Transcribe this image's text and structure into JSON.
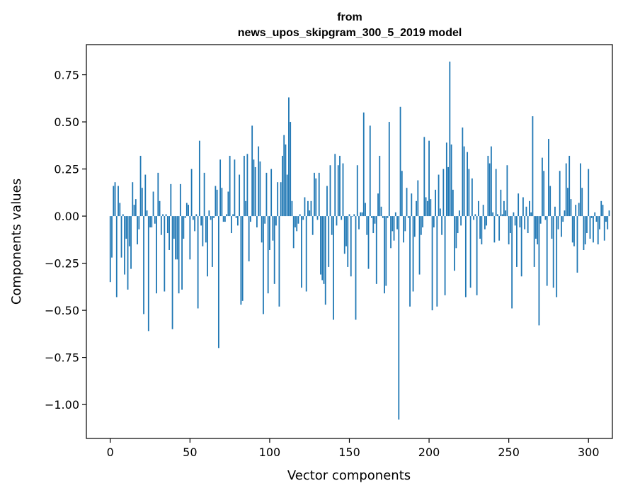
{
  "chart_data": {
    "type": "bar",
    "title_lines": [
      "from",
      "news_upos_skipgram_300_5_2019 model"
    ],
    "xlabel": "Vector components",
    "ylabel": "Components values",
    "xlim": [
      -15,
      315
    ],
    "ylim": [
      -1.18,
      0.91
    ],
    "xticks": [
      0,
      50,
      100,
      150,
      200,
      250,
      300
    ],
    "yticks": [
      0.75,
      0.5,
      0.25,
      0.0,
      -0.25,
      -0.5,
      -0.75,
      -1.0
    ],
    "ytick_labels": [
      "0.75",
      "0.50",
      "0.25",
      "0.00",
      "−0.25",
      "−0.50",
      "−0.75",
      "−1.00"
    ],
    "bar_color": "#1f77b4",
    "grid": false,
    "values": [
      -0.35,
      -0.22,
      0.16,
      0.18,
      -0.43,
      0.16,
      0.07,
      -0.22,
      0.01,
      -0.31,
      -0.12,
      -0.39,
      -0.16,
      -0.28,
      0.18,
      0.06,
      0.09,
      -0.15,
      -0.07,
      0.32,
      0.15,
      -0.52,
      0.22,
      0.03,
      -0.61,
      -0.06,
      -0.06,
      0.13,
      -0.04,
      -0.41,
      0.23,
      0.08,
      -0.1,
      0.01,
      -0.4,
      0.01,
      -0.09,
      -0.18,
      0.17,
      -0.6,
      -0.12,
      -0.23,
      -0.23,
      -0.41,
      0.17,
      -0.39,
      -0.12,
      -0.01,
      0.07,
      0.06,
      -0.23,
      0.25,
      -0.02,
      -0.08,
      0.01,
      -0.49,
      0.4,
      -0.05,
      -0.16,
      0.23,
      -0.14,
      -0.32,
      0.03,
      -0.02,
      -0.27,
      -0.01,
      0.16,
      0.14,
      -0.7,
      0.3,
      0.15,
      -0.03,
      -0.03,
      0.01,
      0.13,
      0.32,
      -0.09,
      0.01,
      0.3,
      -0.01,
      -0.05,
      0.22,
      -0.47,
      -0.45,
      0.32,
      0.08,
      0.33,
      -0.24,
      -0.03,
      0.48,
      0.3,
      0.26,
      -0.06,
      0.37,
      0.29,
      -0.14,
      -0.52,
      -0.04,
      0.23,
      -0.41,
      -0.18,
      0.25,
      -0.13,
      -0.36,
      -0.05,
      0.18,
      -0.48,
      0.18,
      0.32,
      0.43,
      0.38,
      0.22,
      0.63,
      0.5,
      0.08,
      -0.17,
      -0.06,
      -0.08,
      -0.04,
      0.01,
      -0.38,
      -0.02,
      0.1,
      -0.4,
      0.08,
      0.03,
      0.08,
      -0.1,
      0.23,
      0.2,
      -0.02,
      0.23,
      -0.31,
      -0.34,
      -0.36,
      -0.47,
      0.16,
      -0.27,
      0.27,
      -0.1,
      -0.55,
      0.33,
      -0.05,
      0.27,
      0.32,
      -0.02,
      0.28,
      -0.2,
      -0.16,
      -0.27,
      0.01,
      -0.32,
      0.0,
      0.01,
      -0.55,
      0.27,
      -0.07,
      0.02,
      0.02,
      0.55,
      0.07,
      -0.1,
      -0.28,
      0.48,
      -0.01,
      -0.09,
      -0.04,
      -0.36,
      0.12,
      0.32,
      0.05,
      -0.01,
      -0.41,
      -0.37,
      -0.01,
      0.5,
      -0.17,
      -0.08,
      -0.13,
      0.02,
      -0.07,
      -1.08,
      0.58,
      0.24,
      -0.14,
      -0.08,
      0.15,
      -0.01,
      -0.48,
      0.12,
      -0.4,
      -0.11,
      0.08,
      0.19,
      -0.31,
      -0.1,
      -0.06,
      0.42,
      0.1,
      0.08,
      0.4,
      0.09,
      -0.5,
      -0.06,
      0.14,
      -0.48,
      0.22,
      0.04,
      -0.1,
      0.25,
      -0.42,
      0.39,
      0.26,
      0.82,
      0.38,
      0.14,
      -0.29,
      -0.17,
      -0.09,
      0.03,
      -0.05,
      0.47,
      0.37,
      -0.43,
      0.34,
      0.25,
      -0.38,
      0.2,
      -0.02,
      0.01,
      -0.42,
      0.08,
      -0.12,
      -0.15,
      0.06,
      -0.07,
      -0.05,
      0.32,
      0.28,
      0.37,
      0.02,
      -0.14,
      0.25,
      0.01,
      -0.13,
      0.14,
      0.01,
      0.08,
      0.03,
      0.27,
      -0.15,
      -0.09,
      -0.49,
      0.02,
      -0.05,
      -0.27,
      0.12,
      -0.06,
      -0.32,
      0.1,
      -0.07,
      0.05,
      -0.09,
      0.08,
      0.02,
      0.53,
      -0.27,
      -0.12,
      -0.15,
      -0.58,
      -0.04,
      0.31,
      0.24,
      -0.02,
      -0.37,
      0.41,
      0.16,
      -0.12,
      -0.38,
      0.05,
      -0.43,
      -0.07,
      0.24,
      -0.11,
      -0.03,
      0.03,
      0.28,
      0.15,
      0.32,
      0.09,
      -0.14,
      -0.16,
      0.06,
      -0.3,
      0.07,
      0.28,
      0.15,
      -0.18,
      -0.15,
      -0.09,
      0.25,
      -0.12,
      -0.01,
      -0.14,
      0.02,
      -0.03,
      -0.15,
      -0.07,
      0.08,
      0.06,
      -0.13,
      -0.03,
      -0.07,
      0.03
    ]
  }
}
